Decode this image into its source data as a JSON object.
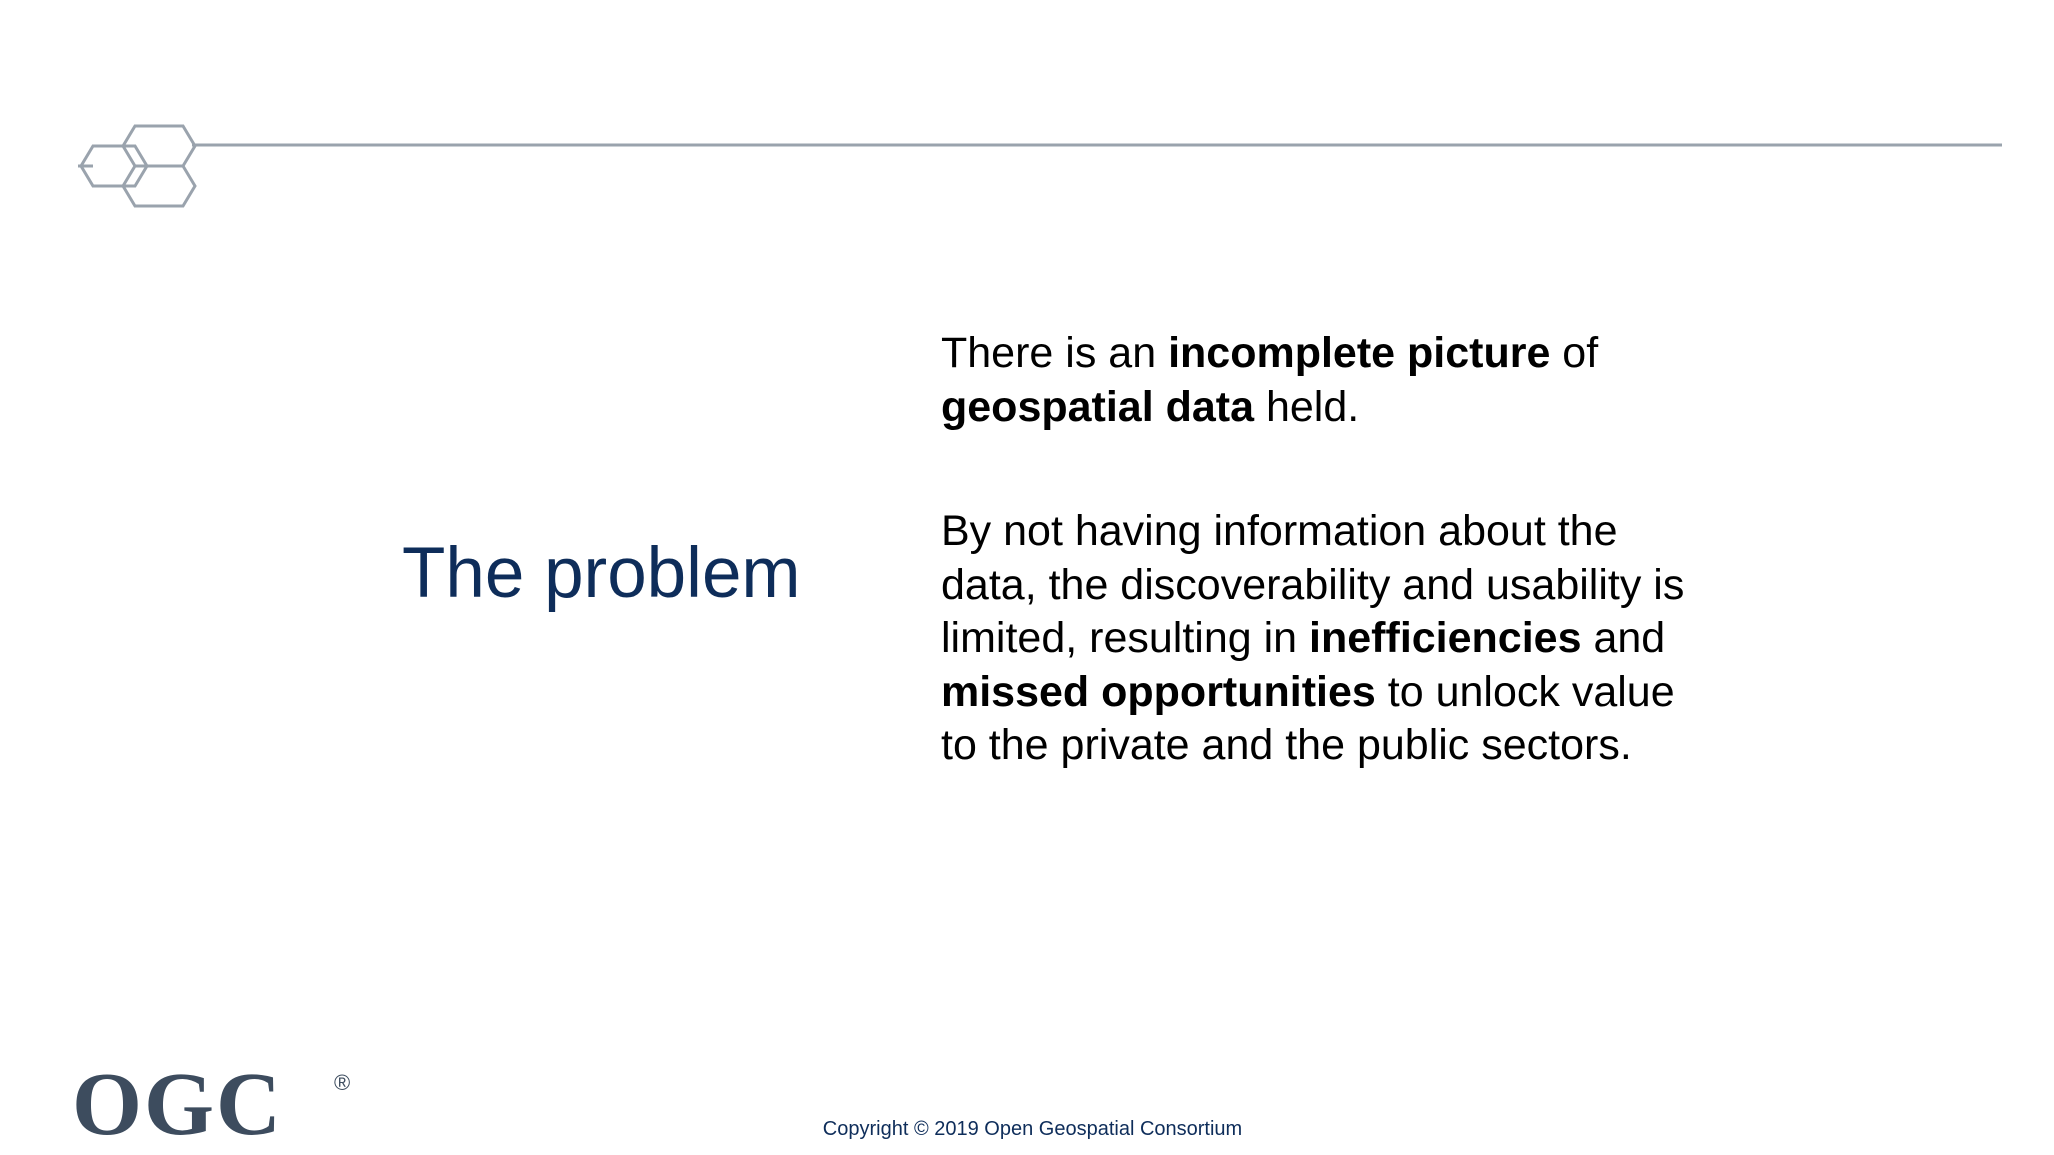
{
  "slide": {
    "title": "The problem",
    "paragraph_1": [
      {
        "text": "There is an ",
        "bold": false
      },
      {
        "text": "incomplete picture",
        "bold": true
      },
      {
        "text": " of ",
        "bold": false
      },
      {
        "text": "geospatial data",
        "bold": true
      },
      {
        "text": " held.",
        "bold": false
      }
    ],
    "paragraph_2": [
      {
        "text": "By not having information about the data, the discoverability and usability is limited, resulting in ",
        "bold": false
      },
      {
        "text": "inefficiencies",
        "bold": true
      },
      {
        "text": " and ",
        "bold": false
      },
      {
        "text": "missed opportunities",
        "bold": true
      },
      {
        "text": " to unlock value to the private and the public sectors.",
        "bold": false
      }
    ]
  },
  "header": {
    "decoration_icon": "hexagon-cluster-icon",
    "line_color": "#9aa3ad"
  },
  "footer": {
    "logo_text": "OGC",
    "registered_mark": "®",
    "copyright": "Copyright © 2019 Open Geospatial Consortium"
  },
  "colors": {
    "title": "#0e2d5a",
    "logo": "#3d4c5e",
    "body_text": "#000000"
  }
}
